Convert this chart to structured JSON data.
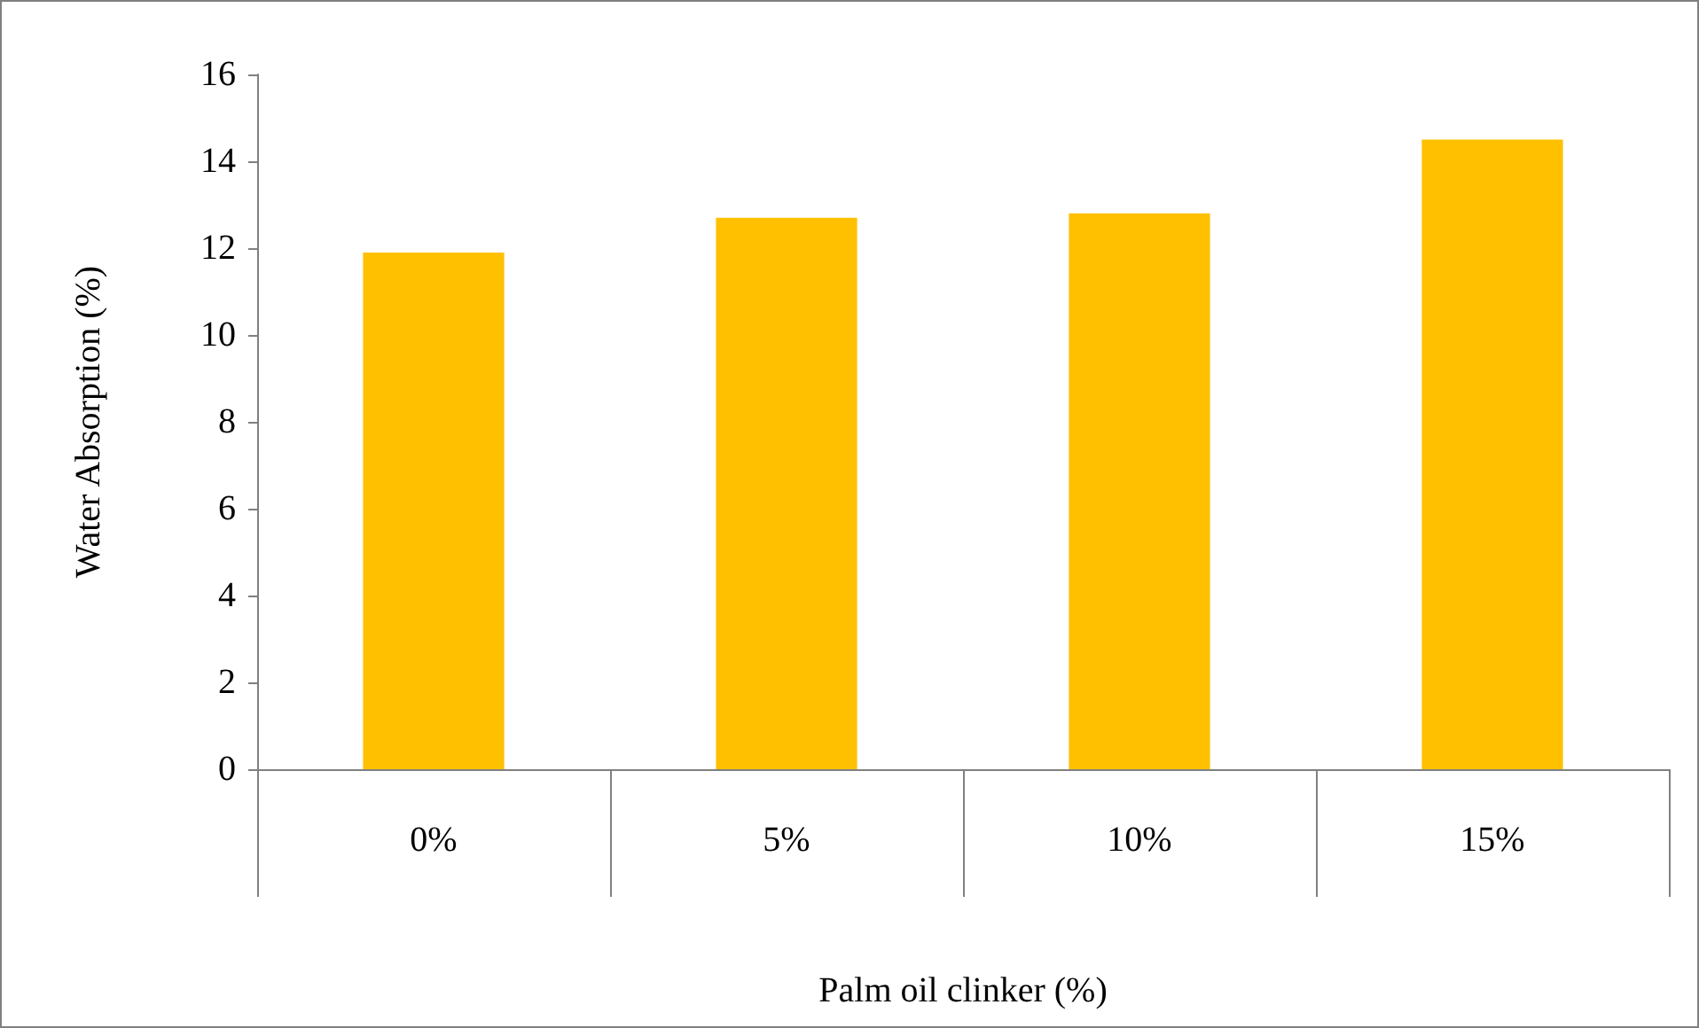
{
  "chart_data": {
    "type": "bar",
    "xlabel": "Palm oil clinker (%)",
    "ylabel": "Water Absorption (%)",
    "categories": [
      "0%",
      "5%",
      "10%",
      "15%"
    ],
    "values": [
      11.9,
      12.7,
      12.8,
      14.5
    ],
    "color": "#ffc000",
    "ylim": [
      0,
      16
    ],
    "yticks": [
      0,
      2,
      4,
      6,
      8,
      10,
      12,
      14,
      16
    ]
  }
}
